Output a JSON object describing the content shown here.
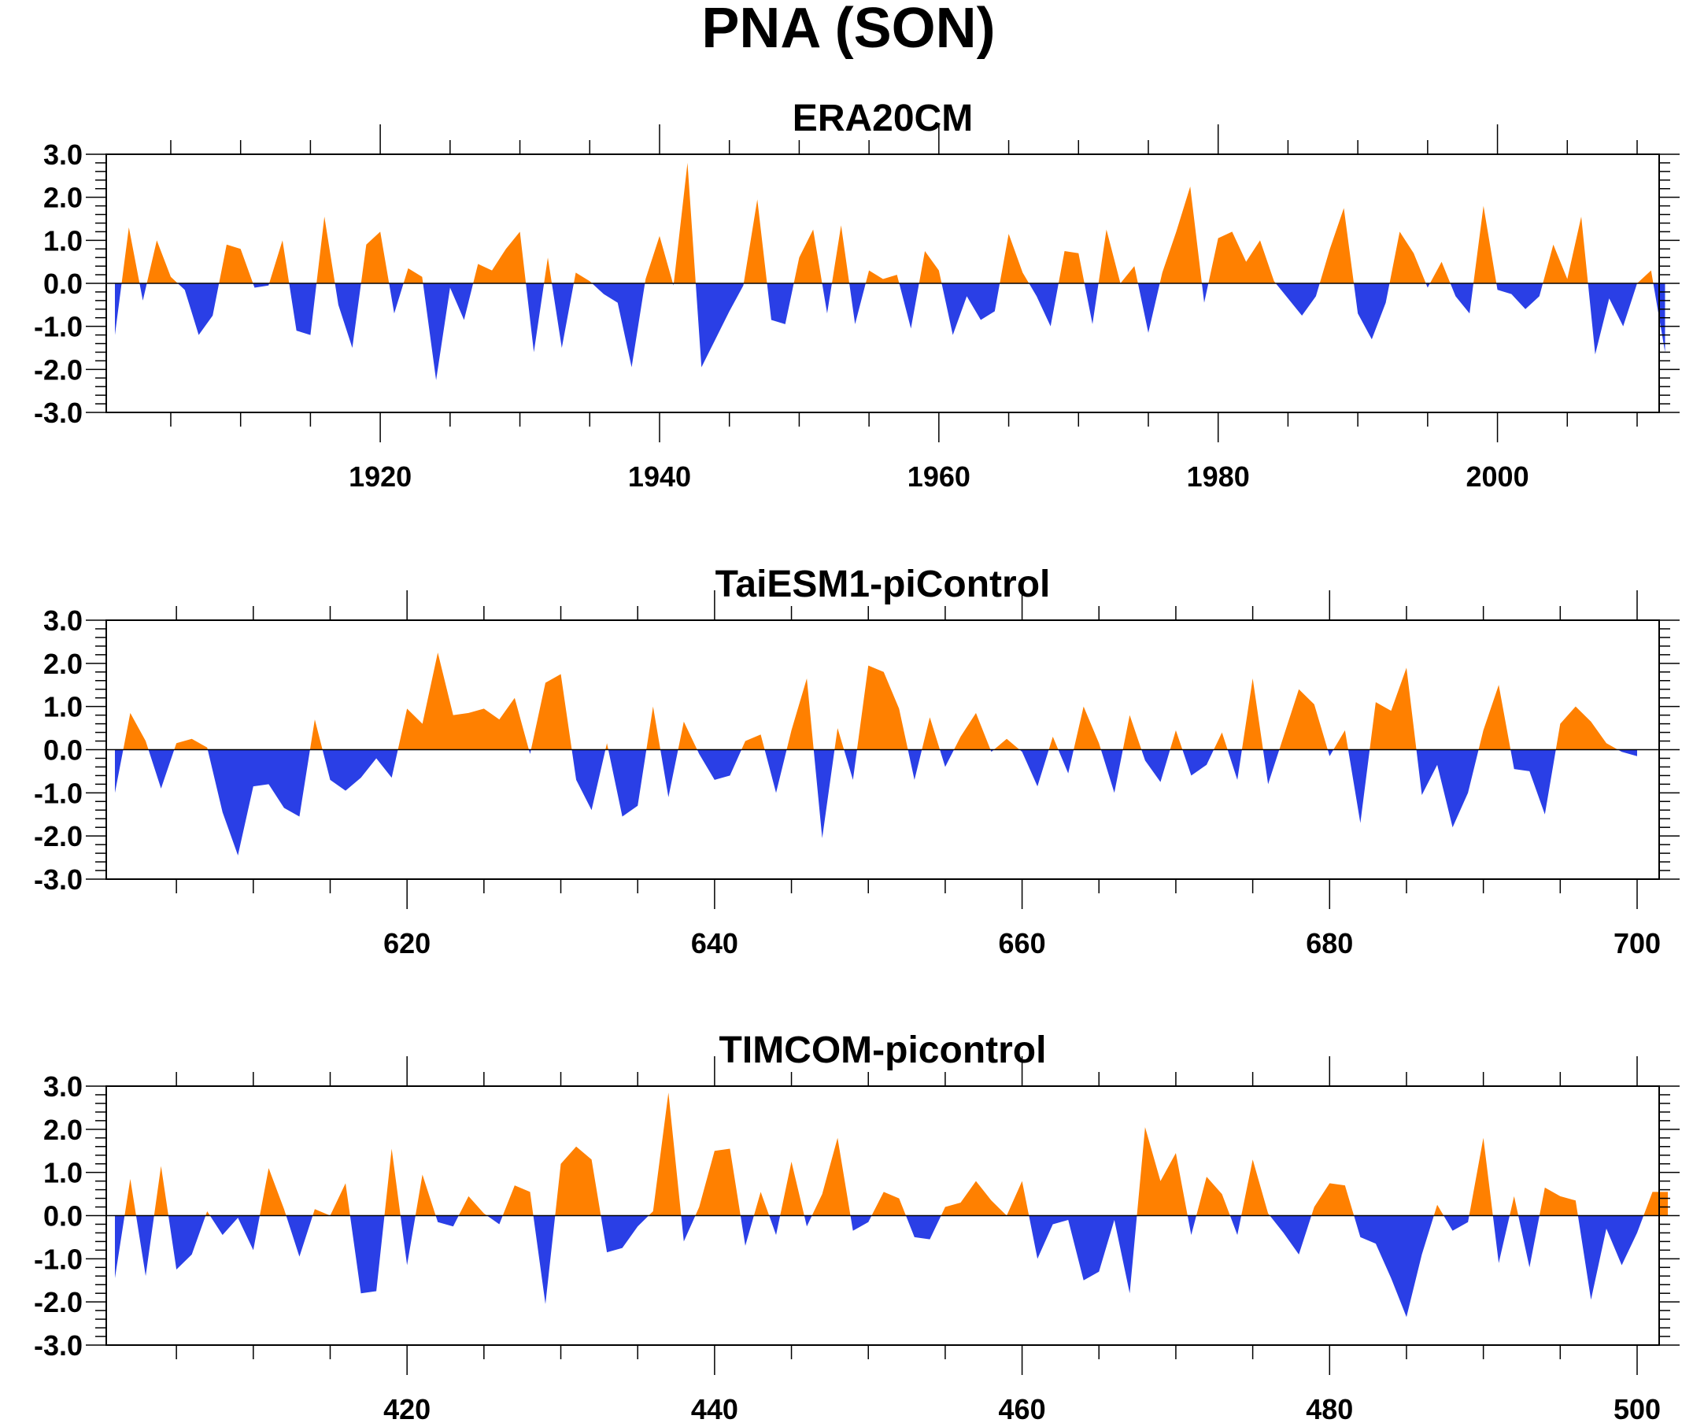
{
  "title": "PNA (SON)",
  "colors": {
    "positive": "#ff8000",
    "negative": "#2a3fe6",
    "frame": "#000000"
  },
  "chart_data": [
    {
      "type": "area",
      "title": "ERA20CM",
      "xlabel": "",
      "ylabel": "",
      "xlim": [
        1901,
        2010
      ],
      "ylim": [
        -3.0,
        3.0
      ],
      "grid": false,
      "xticks": [
        1920,
        1940,
        1960,
        1980,
        2000
      ],
      "yticks": [
        "3.0",
        "2.0",
        "1.0",
        "0.0",
        "-1.0",
        "-2.0",
        "-3.0"
      ],
      "x_start": 1901,
      "values": [
        -1.2,
        1.3,
        -0.4,
        1.0,
        0.15,
        -0.15,
        -1.2,
        -0.75,
        0.9,
        0.8,
        -0.1,
        -0.05,
        1.0,
        -1.1,
        -1.2,
        1.55,
        -0.5,
        -1.5,
        0.9,
        1.2,
        -0.7,
        0.35,
        0.15,
        -2.25,
        -0.1,
        -0.85,
        0.45,
        0.3,
        0.8,
        1.2,
        -1.6,
        0.6,
        -1.5,
        0.25,
        0.05,
        -0.25,
        -0.45,
        -1.95,
        0.1,
        1.1,
        -0.05,
        2.8,
        -1.95,
        -1.3,
        -0.65,
        -0.05,
        1.95,
        -0.85,
        -0.95,
        0.6,
        1.25,
        -0.7,
        1.35,
        -0.95,
        0.3,
        0.1,
        0.2,
        -1.05,
        0.75,
        0.3,
        -1.2,
        -0.3,
        -0.85,
        -0.65,
        1.15,
        0.25,
        -0.3,
        -1.0,
        0.75,
        0.7,
        -0.95,
        1.25,
        0.0,
        0.4,
        -1.15,
        0.25,
        1.2,
        2.25,
        -0.45,
        1.05,
        1.2,
        0.5,
        1.0,
        0.05,
        -0.35,
        -0.75,
        -0.3,
        0.8,
        1.75,
        -0.7,
        -1.3,
        -0.45,
        1.2,
        0.7,
        -0.1,
        0.5,
        -0.3,
        -0.7,
        1.8,
        -0.15,
        -0.25,
        -0.6,
        -0.3,
        0.9,
        0.1,
        1.55,
        -1.65,
        -0.35,
        -1.0,
        0.0,
        0.3,
        -1.6
      ]
    },
    {
      "type": "area",
      "title": "TaiESM1-piControl",
      "xlabel": "",
      "ylabel": "",
      "xlim": [
        601,
        700
      ],
      "ylim": [
        -3.0,
        3.0
      ],
      "grid": false,
      "xticks": [
        620,
        640,
        660,
        680,
        700
      ],
      "yticks": [
        "3.0",
        "2.0",
        "1.0",
        "0.0",
        "-1.0",
        "-2.0",
        "-3.0"
      ],
      "x_start": 601,
      "values": [
        -1.0,
        0.85,
        0.2,
        -0.9,
        0.15,
        0.25,
        0.05,
        -1.45,
        -2.45,
        -0.85,
        -0.8,
        -1.35,
        -1.55,
        0.7,
        -0.7,
        -0.95,
        -0.65,
        -0.2,
        -0.65,
        0.95,
        0.6,
        2.25,
        0.8,
        0.85,
        0.95,
        0.7,
        1.2,
        -0.1,
        1.55,
        1.75,
        -0.7,
        -1.4,
        0.15,
        -1.55,
        -1.3,
        1.0,
        -1.1,
        0.65,
        -0.1,
        -0.7,
        -0.6,
        0.2,
        0.35,
        -1.0,
        0.45,
        1.65,
        -2.05,
        0.5,
        -0.7,
        1.95,
        1.8,
        0.95,
        -0.7,
        0.75,
        -0.4,
        0.3,
        0.85,
        -0.05,
        0.25,
        -0.05,
        -0.85,
        0.3,
        -0.55,
        1.0,
        0.15,
        -1.0,
        0.8,
        -0.25,
        -0.75,
        0.45,
        -0.6,
        -0.35,
        0.4,
        -0.7,
        1.65,
        -0.8,
        0.3,
        1.4,
        1.05,
        -0.15,
        0.45,
        -1.7,
        1.1,
        0.9,
        1.9,
        -1.05,
        -0.35,
        -1.8,
        -1.0,
        0.45,
        1.5,
        -0.45,
        -0.5,
        -1.5,
        0.6,
        1.0,
        0.65,
        0.15,
        -0.05,
        -0.15
      ]
    },
    {
      "type": "area",
      "title": "TIMCOM-picontrol",
      "xlabel": "",
      "ylabel": "",
      "xlim": [
        401,
        500
      ],
      "ylim": [
        -3.0,
        3.0
      ],
      "grid": false,
      "xticks": [
        420,
        440,
        460,
        480,
        500
      ],
      "yticks": [
        "3.0",
        "2.0",
        "1.0",
        "0.0",
        "-1.0",
        "-2.0",
        "-3.0"
      ],
      "x_start": 401,
      "values": [
        -1.45,
        0.85,
        -1.4,
        1.15,
        -1.25,
        -0.9,
        0.1,
        -0.45,
        -0.05,
        -0.8,
        1.1,
        0.15,
        -0.95,
        0.15,
        0.0,
        0.75,
        -1.8,
        -1.75,
        1.55,
        -1.15,
        0.95,
        -0.15,
        -0.25,
        0.45,
        0.05,
        -0.2,
        0.7,
        0.55,
        -2.05,
        1.2,
        1.6,
        1.3,
        -0.85,
        -0.75,
        -0.25,
        0.1,
        2.85,
        -0.6,
        0.2,
        1.5,
        1.55,
        -0.7,
        0.55,
        -0.45,
        1.25,
        -0.25,
        0.5,
        1.8,
        -0.35,
        -0.15,
        0.55,
        0.4,
        -0.5,
        -0.55,
        0.2,
        0.3,
        0.8,
        0.35,
        0.0,
        0.8,
        -1.0,
        -0.2,
        -0.1,
        -1.5,
        -1.3,
        -0.1,
        -1.8,
        2.05,
        0.8,
        1.45,
        -0.45,
        0.9,
        0.5,
        -0.45,
        1.3,
        0.05,
        -0.4,
        -0.9,
        0.2,
        0.75,
        0.7,
        -0.5,
        -0.65,
        -1.45,
        -2.35,
        -0.9,
        0.25,
        -0.35,
        -0.15,
        1.8,
        -1.1,
        0.45,
        -1.2,
        0.65,
        0.45,
        0.35,
        -1.95,
        -0.3,
        -1.15,
        -0.4,
        0.55,
        0.55
      ]
    }
  ]
}
